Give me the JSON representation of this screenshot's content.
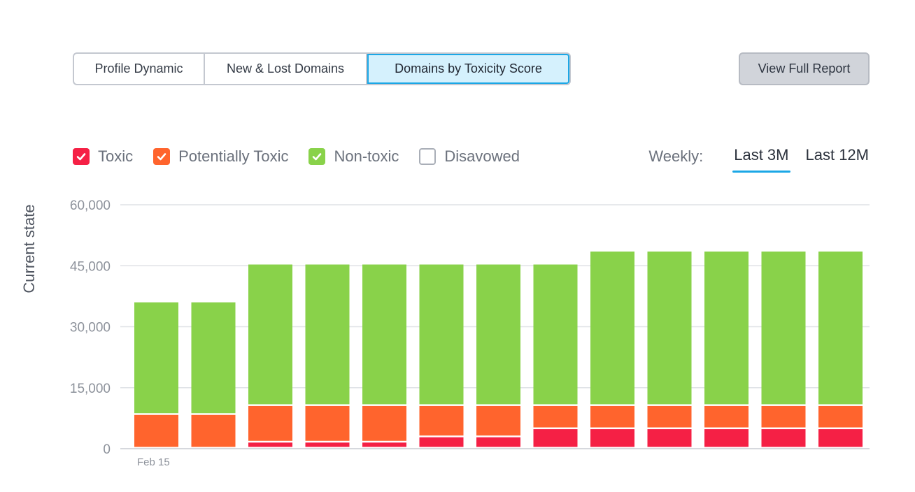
{
  "tabs": [
    {
      "label": "Profile Dynamic",
      "active": false
    },
    {
      "label": "New & Lost Domains",
      "active": false
    },
    {
      "label": "Domains by Toxicity Score",
      "active": true
    }
  ],
  "report_button": "View Full Report",
  "legend": [
    {
      "label": "Toxic",
      "checked": true,
      "color": "#f52045"
    },
    {
      "label": "Potentially Toxic",
      "checked": true,
      "color": "#ff642d"
    },
    {
      "label": "Non-toxic",
      "checked": true,
      "color": "#89d24a"
    },
    {
      "label": "Disavowed",
      "checked": false,
      "color": "#ffffff"
    }
  ],
  "period": {
    "label": "Weekly:",
    "options": [
      {
        "label": "Last 3M",
        "active": true
      },
      {
        "label": "Last 12M",
        "active": false
      }
    ]
  },
  "chart_data": {
    "type": "bar",
    "stacked": true,
    "ylabel": "Current state",
    "ylim": [
      0,
      60000
    ],
    "yticks": [
      0,
      15000,
      30000,
      45000,
      60000
    ],
    "ytick_labels": [
      "0",
      "15,000",
      "30,000",
      "45,000",
      "60,000"
    ],
    "xtick_labels": [
      "Feb 15",
      "",
      "",
      "",
      "",
      "",
      "",
      "",
      "",
      "",
      "",
      "",
      ""
    ],
    "grid": true,
    "series": [
      {
        "name": "Toxic",
        "color": "#f52045",
        "values": [
          0,
          0,
          1500,
          1500,
          1500,
          2800,
          2800,
          4800,
          4800,
          4800,
          4800,
          4800,
          4800
        ]
      },
      {
        "name": "Potentially Toxic",
        "color": "#ff642d",
        "values": [
          8300,
          8300,
          9000,
          9000,
          9000,
          7700,
          7700,
          5700,
          5700,
          5700,
          5700,
          5700,
          5700
        ]
      },
      {
        "name": "Non-toxic",
        "color": "#89d24a",
        "values": [
          27700,
          27700,
          34800,
          34800,
          34800,
          34800,
          34800,
          34800,
          38000,
          38000,
          38000,
          38000,
          38000
        ]
      }
    ]
  }
}
